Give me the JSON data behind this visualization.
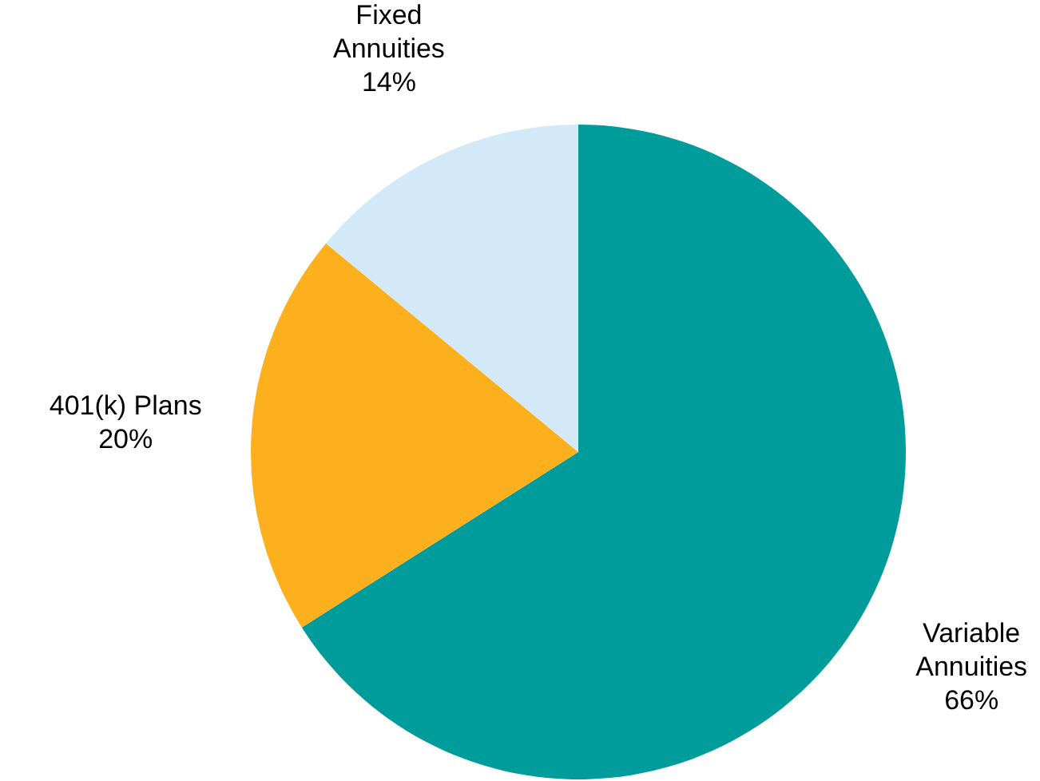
{
  "chart_data": {
    "type": "pie",
    "categories": [
      "Variable Annuities",
      "401(k) Plans",
      "Fixed Annuities"
    ],
    "values": [
      66,
      20,
      14
    ],
    "colors": [
      "#009b9b",
      "#fdb01e",
      "#d4e9f7"
    ],
    "value_labels": [
      "66%",
      "20%",
      "14%"
    ],
    "legend": false
  }
}
